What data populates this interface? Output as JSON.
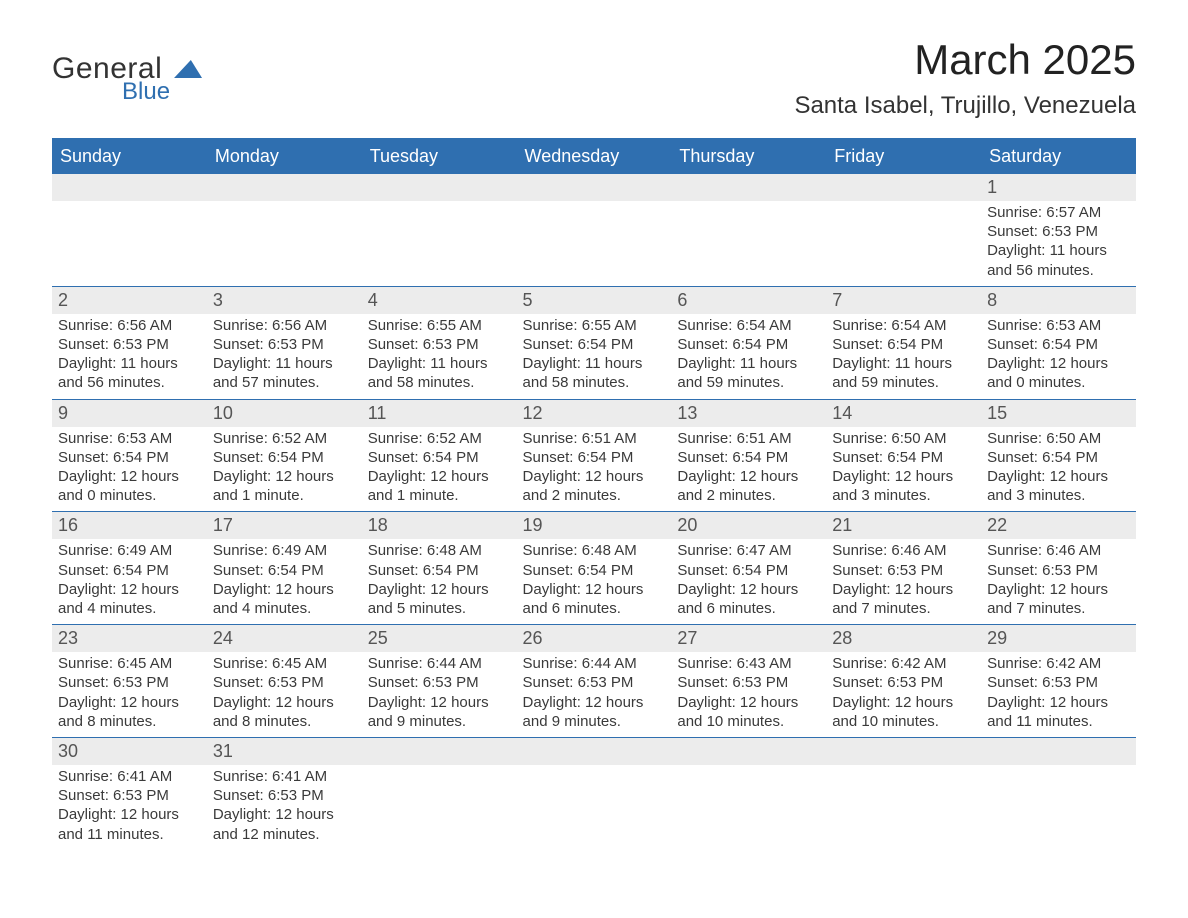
{
  "logo": {
    "line1": "General",
    "line2": "Blue"
  },
  "header": {
    "month_title": "March 2025",
    "location": "Santa Isabel, Trujillo, Venezuela"
  },
  "colors": {
    "header_bg": "#2f6fb0",
    "header_text": "#ffffff",
    "daynum_bg": "#ececec",
    "text": "#3a3a3a",
    "rule": "#2f6fb0"
  },
  "day_headers": [
    "Sunday",
    "Monday",
    "Tuesday",
    "Wednesday",
    "Thursday",
    "Friday",
    "Saturday"
  ],
  "weeks": [
    [
      null,
      null,
      null,
      null,
      null,
      null,
      {
        "n": "1",
        "sunrise": "Sunrise: 6:57 AM",
        "sunset": "Sunset: 6:53 PM",
        "day1": "Daylight: 11 hours",
        "day2": "and 56 minutes."
      }
    ],
    [
      {
        "n": "2",
        "sunrise": "Sunrise: 6:56 AM",
        "sunset": "Sunset: 6:53 PM",
        "day1": "Daylight: 11 hours",
        "day2": "and 56 minutes."
      },
      {
        "n": "3",
        "sunrise": "Sunrise: 6:56 AM",
        "sunset": "Sunset: 6:53 PM",
        "day1": "Daylight: 11 hours",
        "day2": "and 57 minutes."
      },
      {
        "n": "4",
        "sunrise": "Sunrise: 6:55 AM",
        "sunset": "Sunset: 6:53 PM",
        "day1": "Daylight: 11 hours",
        "day2": "and 58 minutes."
      },
      {
        "n": "5",
        "sunrise": "Sunrise: 6:55 AM",
        "sunset": "Sunset: 6:54 PM",
        "day1": "Daylight: 11 hours",
        "day2": "and 58 minutes."
      },
      {
        "n": "6",
        "sunrise": "Sunrise: 6:54 AM",
        "sunset": "Sunset: 6:54 PM",
        "day1": "Daylight: 11 hours",
        "day2": "and 59 minutes."
      },
      {
        "n": "7",
        "sunrise": "Sunrise: 6:54 AM",
        "sunset": "Sunset: 6:54 PM",
        "day1": "Daylight: 11 hours",
        "day2": "and 59 minutes."
      },
      {
        "n": "8",
        "sunrise": "Sunrise: 6:53 AM",
        "sunset": "Sunset: 6:54 PM",
        "day1": "Daylight: 12 hours",
        "day2": "and 0 minutes."
      }
    ],
    [
      {
        "n": "9",
        "sunrise": "Sunrise: 6:53 AM",
        "sunset": "Sunset: 6:54 PM",
        "day1": "Daylight: 12 hours",
        "day2": "and 0 minutes."
      },
      {
        "n": "10",
        "sunrise": "Sunrise: 6:52 AM",
        "sunset": "Sunset: 6:54 PM",
        "day1": "Daylight: 12 hours",
        "day2": "and 1 minute."
      },
      {
        "n": "11",
        "sunrise": "Sunrise: 6:52 AM",
        "sunset": "Sunset: 6:54 PM",
        "day1": "Daylight: 12 hours",
        "day2": "and 1 minute."
      },
      {
        "n": "12",
        "sunrise": "Sunrise: 6:51 AM",
        "sunset": "Sunset: 6:54 PM",
        "day1": "Daylight: 12 hours",
        "day2": "and 2 minutes."
      },
      {
        "n": "13",
        "sunrise": "Sunrise: 6:51 AM",
        "sunset": "Sunset: 6:54 PM",
        "day1": "Daylight: 12 hours",
        "day2": "and 2 minutes."
      },
      {
        "n": "14",
        "sunrise": "Sunrise: 6:50 AM",
        "sunset": "Sunset: 6:54 PM",
        "day1": "Daylight: 12 hours",
        "day2": "and 3 minutes."
      },
      {
        "n": "15",
        "sunrise": "Sunrise: 6:50 AM",
        "sunset": "Sunset: 6:54 PM",
        "day1": "Daylight: 12 hours",
        "day2": "and 3 minutes."
      }
    ],
    [
      {
        "n": "16",
        "sunrise": "Sunrise: 6:49 AM",
        "sunset": "Sunset: 6:54 PM",
        "day1": "Daylight: 12 hours",
        "day2": "and 4 minutes."
      },
      {
        "n": "17",
        "sunrise": "Sunrise: 6:49 AM",
        "sunset": "Sunset: 6:54 PM",
        "day1": "Daylight: 12 hours",
        "day2": "and 4 minutes."
      },
      {
        "n": "18",
        "sunrise": "Sunrise: 6:48 AM",
        "sunset": "Sunset: 6:54 PM",
        "day1": "Daylight: 12 hours",
        "day2": "and 5 minutes."
      },
      {
        "n": "19",
        "sunrise": "Sunrise: 6:48 AM",
        "sunset": "Sunset: 6:54 PM",
        "day1": "Daylight: 12 hours",
        "day2": "and 6 minutes."
      },
      {
        "n": "20",
        "sunrise": "Sunrise: 6:47 AM",
        "sunset": "Sunset: 6:54 PM",
        "day1": "Daylight: 12 hours",
        "day2": "and 6 minutes."
      },
      {
        "n": "21",
        "sunrise": "Sunrise: 6:46 AM",
        "sunset": "Sunset: 6:53 PM",
        "day1": "Daylight: 12 hours",
        "day2": "and 7 minutes."
      },
      {
        "n": "22",
        "sunrise": "Sunrise: 6:46 AM",
        "sunset": "Sunset: 6:53 PM",
        "day1": "Daylight: 12 hours",
        "day2": "and 7 minutes."
      }
    ],
    [
      {
        "n": "23",
        "sunrise": "Sunrise: 6:45 AM",
        "sunset": "Sunset: 6:53 PM",
        "day1": "Daylight: 12 hours",
        "day2": "and 8 minutes."
      },
      {
        "n": "24",
        "sunrise": "Sunrise: 6:45 AM",
        "sunset": "Sunset: 6:53 PM",
        "day1": "Daylight: 12 hours",
        "day2": "and 8 minutes."
      },
      {
        "n": "25",
        "sunrise": "Sunrise: 6:44 AM",
        "sunset": "Sunset: 6:53 PM",
        "day1": "Daylight: 12 hours",
        "day2": "and 9 minutes."
      },
      {
        "n": "26",
        "sunrise": "Sunrise: 6:44 AM",
        "sunset": "Sunset: 6:53 PM",
        "day1": "Daylight: 12 hours",
        "day2": "and 9 minutes."
      },
      {
        "n": "27",
        "sunrise": "Sunrise: 6:43 AM",
        "sunset": "Sunset: 6:53 PM",
        "day1": "Daylight: 12 hours",
        "day2": "and 10 minutes."
      },
      {
        "n": "28",
        "sunrise": "Sunrise: 6:42 AM",
        "sunset": "Sunset: 6:53 PM",
        "day1": "Daylight: 12 hours",
        "day2": "and 10 minutes."
      },
      {
        "n": "29",
        "sunrise": "Sunrise: 6:42 AM",
        "sunset": "Sunset: 6:53 PM",
        "day1": "Daylight: 12 hours",
        "day2": "and 11 minutes."
      }
    ],
    [
      {
        "n": "30",
        "sunrise": "Sunrise: 6:41 AM",
        "sunset": "Sunset: 6:53 PM",
        "day1": "Daylight: 12 hours",
        "day2": "and 11 minutes."
      },
      {
        "n": "31",
        "sunrise": "Sunrise: 6:41 AM",
        "sunset": "Sunset: 6:53 PM",
        "day1": "Daylight: 12 hours",
        "day2": "and 12 minutes."
      },
      null,
      null,
      null,
      null,
      null
    ]
  ]
}
